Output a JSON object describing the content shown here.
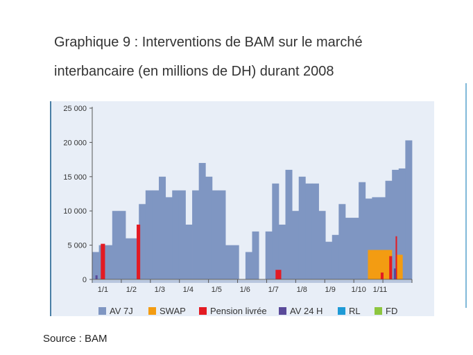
{
  "title_line1": "Graphique 9 : Interventions de BAM sur le marché",
  "title_line2": "interbancaire (en millions de DH) durant 2008",
  "source": "Source : BAM",
  "colors": {
    "background": "#e8eef7",
    "av7j": "#7f96c2",
    "swap": "#f39c12",
    "pension": "#e31b23",
    "av24h": "#5a4a9a",
    "rl": "#1e9ad6",
    "fd": "#8dc63f"
  },
  "chart_data": {
    "type": "bar",
    "ylim": [
      0,
      25000
    ],
    "yticks": [
      0,
      5000,
      10000,
      15000,
      20000,
      25000
    ],
    "ytick_labels": [
      "0",
      "5 000",
      "10 000",
      "15 000",
      "20 000",
      "25 000"
    ],
    "x_tick_labels": [
      "1/1",
      "1/2",
      "1/3",
      "1/4",
      "1/5",
      "1/6",
      "1/7",
      "1/8",
      "1/9",
      "1/10",
      "1/11"
    ],
    "x_tick_positions": [
      1.5,
      5.5,
      9.5,
      13.5,
      17.5,
      21.5,
      25.5,
      29.5,
      33.5,
      37.5,
      40.5
    ],
    "n_slots": 45,
    "series": [
      {
        "name": "AV 7J",
        "color_key": "av7j",
        "values": [
          4000,
          5000,
          5000,
          10000,
          10000,
          6000,
          6000,
          11000,
          13000,
          13000,
          15000,
          12000,
          13000,
          13000,
          8000,
          13000,
          17000,
          15000,
          13000,
          13000,
          5000,
          5000,
          0,
          4000,
          7000,
          0,
          7000,
          14000,
          8000,
          16000,
          10000,
          15000,
          14000,
          14000,
          10000,
          5500,
          6500,
          11000,
          9000,
          9000,
          14200,
          11800,
          12000,
          12000,
          14400,
          16000,
          16200,
          20300
        ]
      },
      {
        "name": "SWAP",
        "color_key": "swap",
        "bars": [
          {
            "x": 40.5,
            "value": 4300,
            "width": 3.4
          },
          {
            "x": 43.2,
            "value": 3600,
            "width": 1.0
          }
        ]
      },
      {
        "name": "Pension livrée",
        "color_key": "pension",
        "bars": [
          {
            "x": 1.5,
            "value": 5200,
            "width": 0.6
          },
          {
            "x": 6.5,
            "value": 8000,
            "width": 0.5
          },
          {
            "x": 26.2,
            "value": 1400,
            "width": 0.8
          },
          {
            "x": 40.8,
            "value": 1000,
            "width": 0.4
          },
          {
            "x": 42.0,
            "value": 3400,
            "width": 0.4
          },
          {
            "x": 42.8,
            "value": 6300,
            "width": 0.2
          }
        ]
      },
      {
        "name": "AV 24 H",
        "color_key": "av24h",
        "bars": [
          {
            "x": 0.6,
            "value": 600,
            "width": 0.3
          },
          {
            "x": 42.6,
            "value": 1600,
            "width": 0.3
          }
        ]
      },
      {
        "name": "RL",
        "color_key": "rl",
        "bars": []
      },
      {
        "name": "FD",
        "color_key": "fd",
        "bars": []
      }
    ],
    "legend": [
      "AV 7J",
      "SWAP",
      "Pension livrée",
      "AV 24 H",
      "RL",
      "FD"
    ],
    "legend_position": "bottom"
  }
}
